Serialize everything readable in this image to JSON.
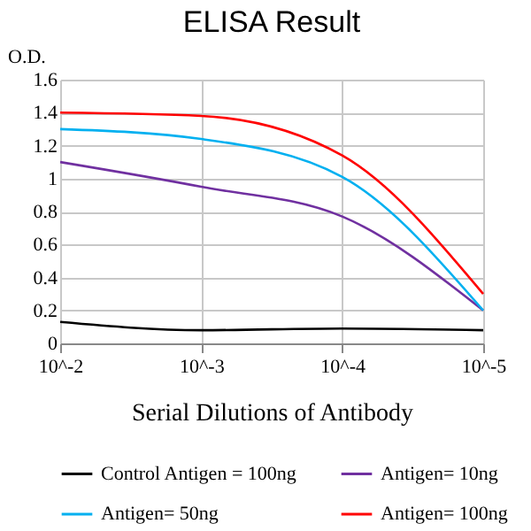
{
  "chart_data": {
    "type": "line",
    "title": "ELISA Result",
    "xlabel": "Serial Dilutions of Antibody",
    "ylabel": "O.D.",
    "categories": [
      "10^-2",
      "10^-3",
      "10^-4",
      "10^-5"
    ],
    "series": [
      {
        "name": "Control Antigen = 100ng",
        "color": "#000000",
        "values": [
          0.13,
          0.08,
          0.09,
          0.08
        ]
      },
      {
        "name": "Antigen= 10ng",
        "color": "#7030a0",
        "values": [
          1.1,
          0.95,
          0.77,
          0.2
        ]
      },
      {
        "name": "Antigen= 50ng",
        "color": "#00b0f0",
        "values": [
          1.3,
          1.24,
          1.01,
          0.2
        ]
      },
      {
        "name": "Antigen= 100ng",
        "color": "#ff0000",
        "values": [
          1.4,
          1.38,
          1.14,
          0.3
        ]
      }
    ],
    "ylim": [
      0,
      1.6
    ],
    "yticks": [
      0,
      0.2,
      0.4,
      0.6,
      0.8,
      1,
      1.2,
      1.4,
      1.6
    ],
    "grid": true,
    "legend": "bottom",
    "marker": "none",
    "line_style": "solid"
  }
}
